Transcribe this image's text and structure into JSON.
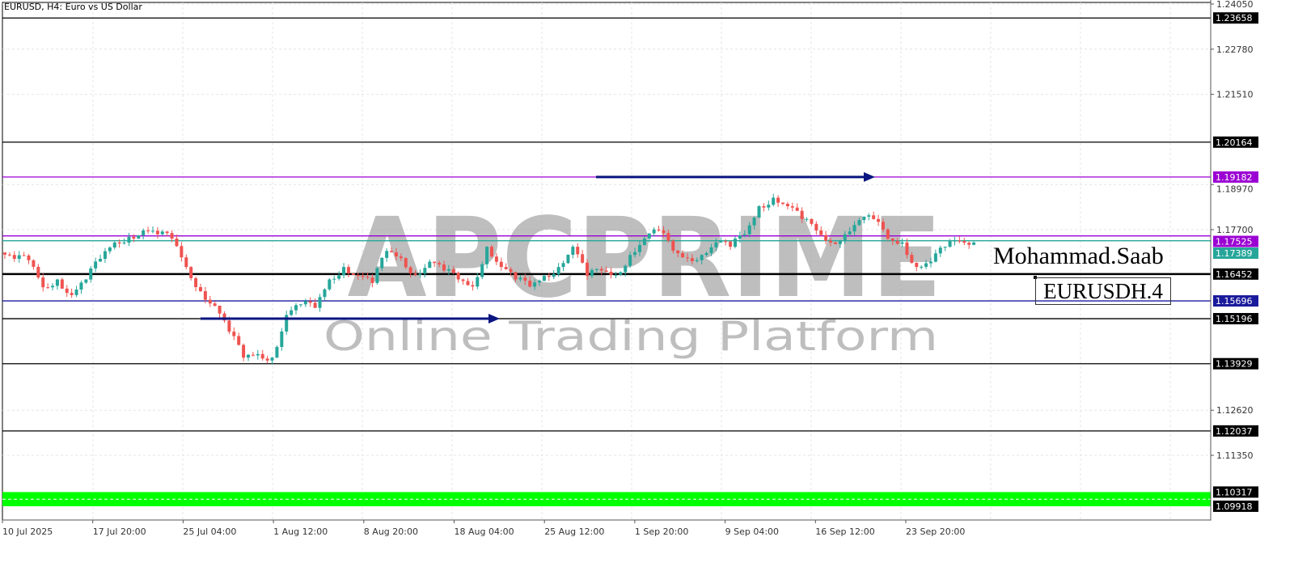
{
  "title": "EURUSD, H4:  Euro vs US Dollar",
  "chart_data": {
    "type": "candlestick",
    "symbol": "EURUSD",
    "timeframe": "H4",
    "ylim": [
      1.0938,
      1.2405
    ],
    "y_ticks": [
      "1.24050",
      "1.22780",
      "1.21510",
      "1.18970",
      "1.17700",
      "1.12620",
      "1.11350"
    ],
    "x_ticks": [
      "10 Jul 2025",
      "17 Jul 20:00",
      "25 Jul 04:00",
      "1 Aug 12:00",
      "8 Aug 20:00",
      "18 Aug 04:00",
      "25 Aug 12:00",
      "1 Sep 20:00",
      "9 Sep 04:00",
      "16 Sep 12:00",
      "23 Sep 20:00"
    ],
    "grid": true,
    "closes": [
      1.1706,
      1.1688,
      1.1684,
      1.1608,
      1.163,
      1.1586,
      1.163,
      1.1688,
      1.1734,
      1.175,
      1.1768,
      1.1757,
      1.1745,
      1.1665,
      1.1597,
      1.1556,
      1.1483,
      1.141,
      1.142,
      1.141,
      1.153,
      1.156,
      1.155,
      1.163,
      1.1665,
      1.164,
      1.162,
      1.171,
      1.169,
      1.1643,
      1.168,
      1.1655,
      1.163,
      1.161,
      1.1722,
      1.1665,
      1.163,
      1.161,
      1.164,
      1.1665,
      1.1722,
      1.164,
      1.1655,
      1.1643,
      1.1699,
      1.1745,
      1.1768,
      1.1711,
      1.169,
      1.1699,
      1.1734,
      1.1722,
      1.1757,
      1.1836,
      1.186,
      1.1836,
      1.18,
      1.1768,
      1.1734,
      1.1757,
      1.1797,
      1.18,
      1.1745,
      1.1734,
      1.1665,
      1.168,
      1.1722,
      1.1738,
      1.1734
    ],
    "levels": [
      {
        "price": 1.23658,
        "label": "1.23658",
        "color": "#000000"
      },
      {
        "price": 1.20164,
        "label": "1.20164",
        "color": "#000000"
      },
      {
        "price": 1.19182,
        "label": "1.19182",
        "color": "#9b00d3"
      },
      {
        "price": 1.17525,
        "label": "1.17525",
        "color": "#9b00d3"
      },
      {
        "price": 1.17389,
        "label": "1.17389",
        "color": "#26a69a"
      },
      {
        "price": 1.16452,
        "label": "1.16452",
        "color": "#000000",
        "bold": true
      },
      {
        "price": 1.15696,
        "label": "1.15696",
        "color": "#1a1a9c"
      },
      {
        "price": 1.15196,
        "label": "1.15196",
        "color": "#000000"
      },
      {
        "price": 1.13929,
        "label": "1.13929",
        "color": "#000000"
      },
      {
        "price": 1.12037,
        "label": "1.12037",
        "color": "#000000"
      }
    ],
    "zone": {
      "low": 1.09918,
      "high": 1.10317,
      "low_label": "1.09918",
      "high_label": "1.10317",
      "color": "#00ff00"
    },
    "arrows": [
      {
        "price": 1.19182,
        "color": "#0a1580"
      },
      {
        "price": 1.15196,
        "color": "#0a1580"
      }
    ],
    "colors": {
      "bull": "#26a69a",
      "bear": "#ef5350"
    }
  },
  "watermark": {
    "brand": "APCPRIME",
    "tagline": "Online Trading Platform"
  },
  "signature": {
    "name": "Mohammad.Saab",
    "symbol": "EURUSDH.4"
  }
}
